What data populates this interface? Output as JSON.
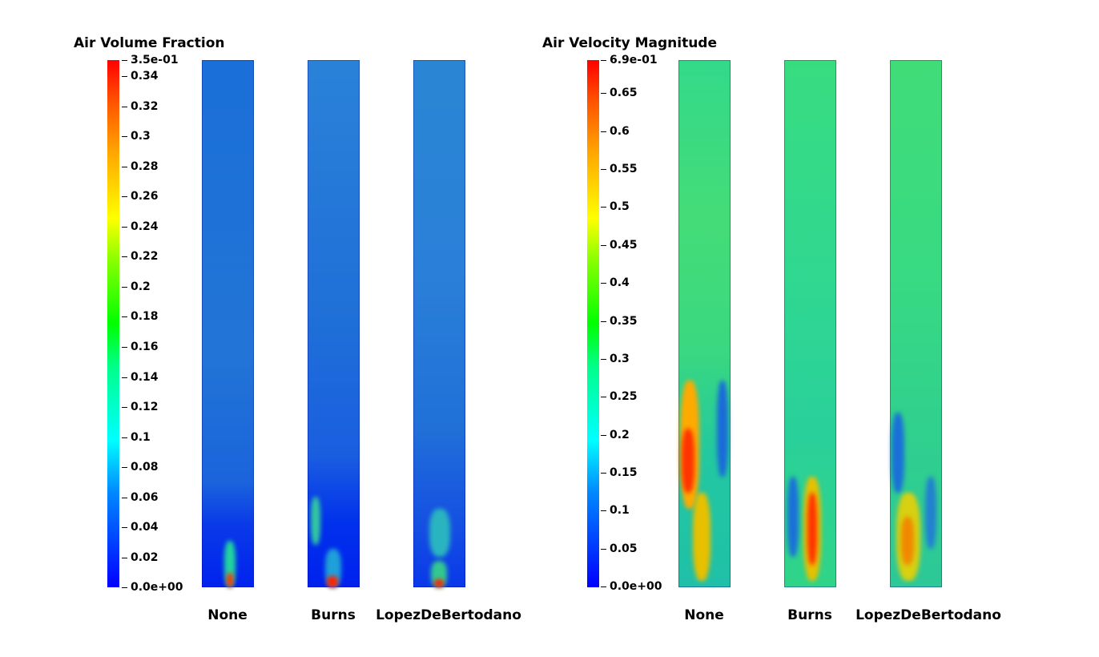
{
  "panels": [
    {
      "title": "Air Volume Fraction",
      "colorbar": {
        "max_label": "3.5e-01",
        "min_label": "0.0e+00",
        "ticks": [
          "0.34",
          "0.32",
          "0.3",
          "0.28",
          "0.26",
          "0.24",
          "0.22",
          "0.2",
          "0.18",
          "0.16",
          "0.14",
          "0.12",
          "0.1",
          "0.08",
          "0.06",
          "0.04",
          "0.02"
        ]
      },
      "columns": [
        "None",
        "Burns",
        "LopezDeBertodano"
      ]
    },
    {
      "title": "Air Velocity Magnitude",
      "colorbar": {
        "max_label": "6.9e-01",
        "min_label": "0.0e+00",
        "ticks": [
          "0.65",
          "0.6",
          "0.55",
          "0.5",
          "0.45",
          "0.4",
          "0.35",
          "0.3",
          "0.25",
          "0.2",
          "0.15",
          "0.1",
          "0.05"
        ]
      },
      "columns": [
        "None",
        "Burns",
        "LopezDeBertodano"
      ]
    }
  ]
}
